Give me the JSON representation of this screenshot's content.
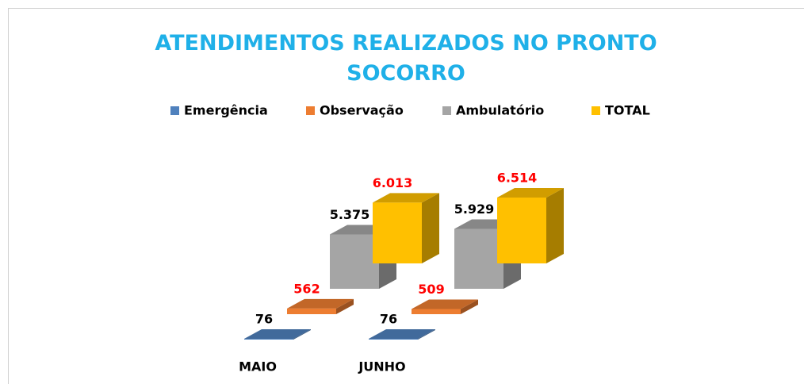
{
  "chart_data": {
    "type": "bar3d",
    "title": "ATENDIMENTOS REALIZADOS NO PRONTO SOCORRO",
    "categories": [
      "MAIO",
      "JUNHO"
    ],
    "series": [
      {
        "name": "Emergência",
        "color": "#4f81bd",
        "label_color": "#000000",
        "values": [
          76,
          76
        ],
        "value_labels": [
          "76",
          "76"
        ]
      },
      {
        "name": "Observação",
        "color": "#ed7d31",
        "label_color": "#ff0000",
        "values": [
          562,
          509
        ],
        "value_labels": [
          "562",
          "509"
        ]
      },
      {
        "name": "Ambulatório",
        "color": "#a5a5a5",
        "label_color": "#000000",
        "values": [
          5375,
          5929
        ],
        "value_labels": [
          "5.375",
          "5.929"
        ]
      },
      {
        "name": "TOTAL",
        "color": "#ffc000",
        "label_color": "#ff0000",
        "values": [
          6013,
          6514
        ],
        "value_labels": [
          "6.013",
          "6.514"
        ]
      }
    ],
    "legend": "top"
  }
}
